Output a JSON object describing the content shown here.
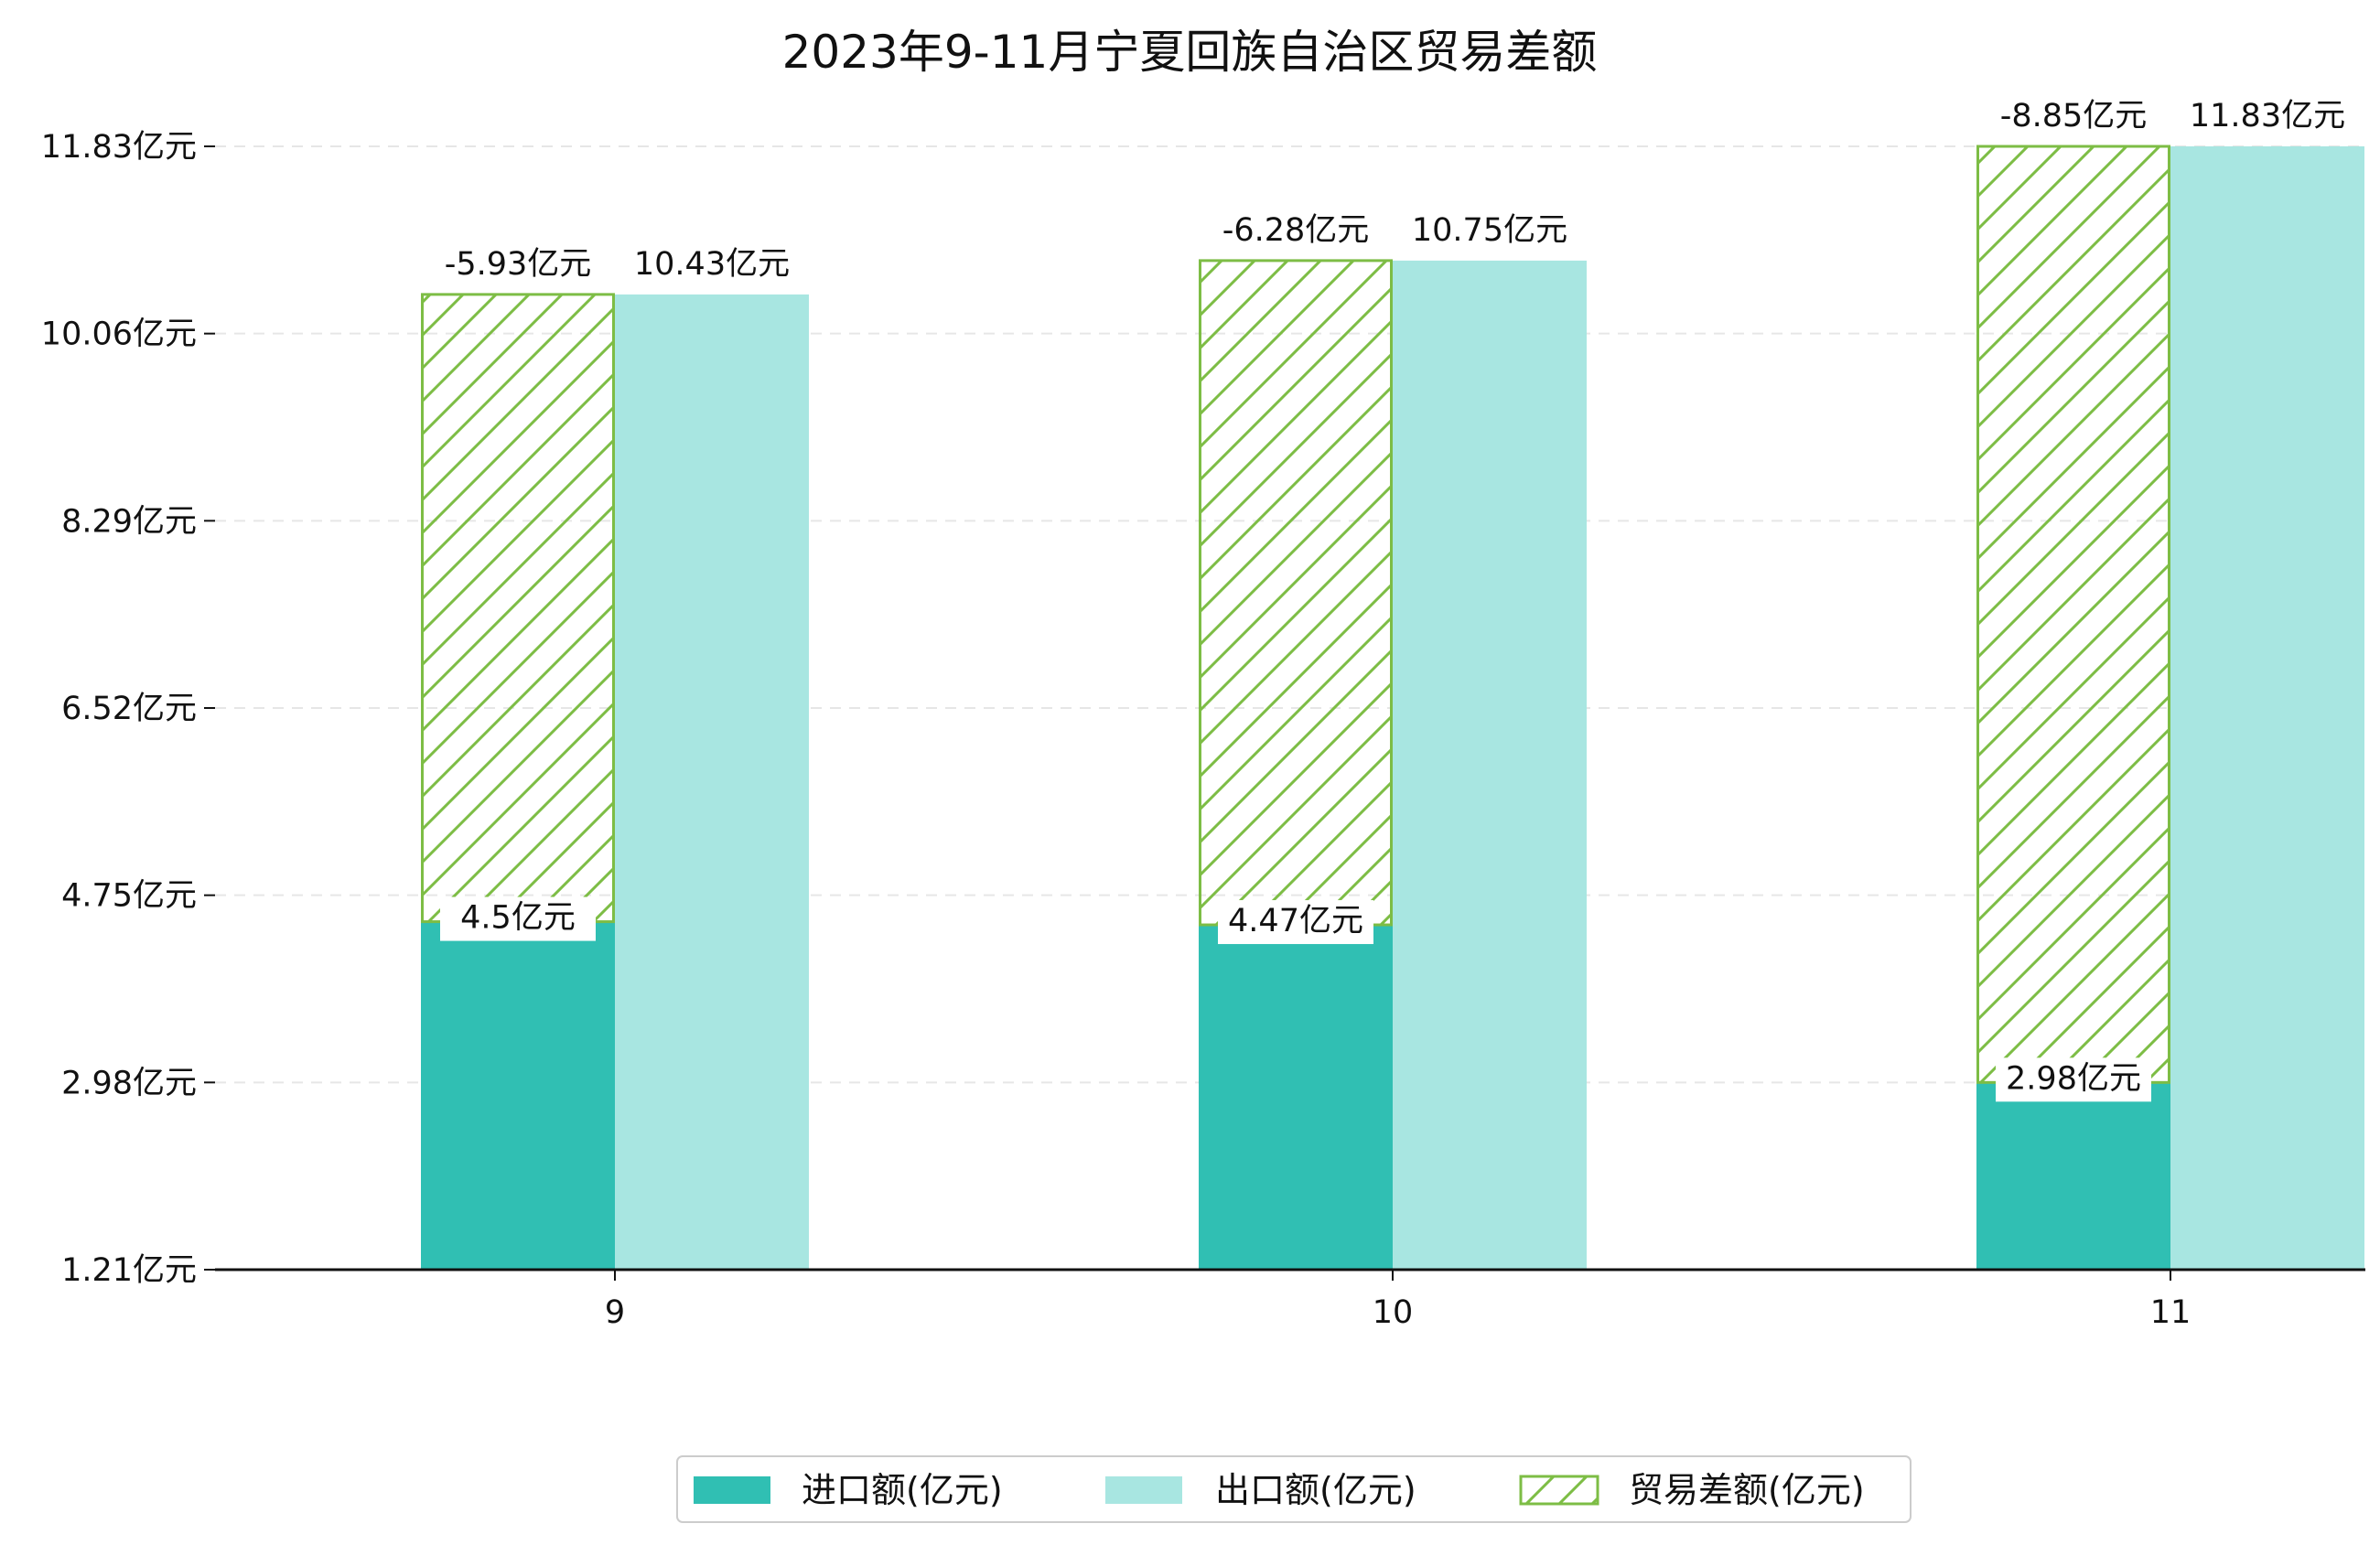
{
  "chart_data": {
    "type": "bar",
    "title": "2023年9-11月宁夏回族自治区贸易差额",
    "xlabel": "",
    "ylabel": "",
    "categories": [
      "9",
      "10",
      "11"
    ],
    "series": [
      {
        "name": "进口额(亿元)",
        "values": [
          4.5,
          4.47,
          2.98
        ],
        "labels": [
          "4.5亿元",
          "4.47亿元",
          "2.98亿元"
        ],
        "color": "#30bfb3"
      },
      {
        "name": "出口额(亿元)",
        "values": [
          10.43,
          10.75,
          11.83
        ],
        "labels": [
          "10.43亿元",
          "10.75亿元",
          "11.83亿元"
        ],
        "color": "#a8e6e1"
      },
      {
        "name": "贸易差额(亿元)",
        "values": [
          -5.93,
          -6.28,
          -8.85
        ],
        "labels": [
          "-5.93亿元",
          "-6.28亿元",
          "-8.85亿元"
        ],
        "color": "#7dbd45",
        "pattern": "hatched",
        "stacked_on": "进口额(亿元)"
      }
    ],
    "yticks": [
      1.21,
      2.98,
      4.75,
      6.52,
      8.29,
      10.06,
      11.83
    ],
    "ytick_labels": [
      "1.21亿元",
      "2.98亿元",
      "4.75亿元",
      "6.52亿元",
      "8.29亿元",
      "10.06亿元",
      "11.83亿元"
    ],
    "ylim": [
      1.21,
      11.83
    ],
    "grid": true,
    "legend_position": "bottom-center"
  }
}
